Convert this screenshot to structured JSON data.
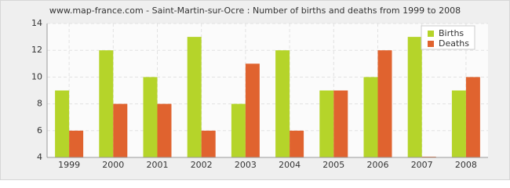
{
  "chart_data": {
    "type": "bar",
    "title": "www.map-france.com - Saint-Martin-sur-Ocre : Number of births and deaths from 1999 to 2008",
    "categories": [
      "1999",
      "2000",
      "2001",
      "2002",
      "2003",
      "2004",
      "2005",
      "2006",
      "2007",
      "2008"
    ],
    "series": [
      {
        "name": "Births",
        "color": "#b5d42a",
        "values": [
          9,
          12,
          10,
          13,
          8,
          12,
          9,
          10,
          13,
          9
        ]
      },
      {
        "name": "Deaths",
        "color": "#e0632f",
        "values": [
          6,
          8,
          8,
          6,
          11,
          6,
          9,
          12,
          4,
          10
        ]
      }
    ],
    "ylim": [
      4,
      14
    ],
    "yticks": [
      4,
      6,
      8,
      10,
      12,
      14
    ],
    "grid": true,
    "legend": "top-right"
  }
}
